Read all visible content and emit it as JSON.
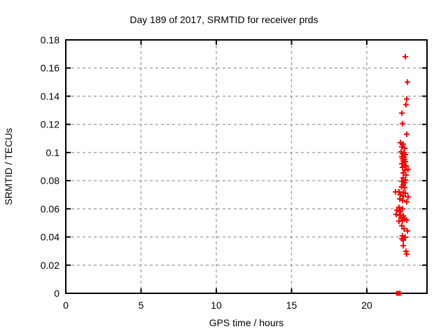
{
  "window": {
    "background": "#ffffff"
  },
  "chart_data": {
    "type": "scatter",
    "title": "Day 189 of 2017, SRMTID for receiver prds",
    "xlabel": "GPS time / hours",
    "ylabel": "SRMTID / TECUs",
    "xlim": [
      0,
      24
    ],
    "ylim": [
      0,
      0.18
    ],
    "xticks": [
      0,
      5,
      10,
      15,
      20
    ],
    "xtick_labels": [
      "0",
      "5",
      "10",
      "15",
      "20"
    ],
    "yticks": [
      0,
      0.02,
      0.04,
      0.06,
      0.08,
      0.1,
      0.12,
      0.14,
      0.16,
      0.18
    ],
    "ytick_labels": [
      "0",
      "0.02",
      "0.04",
      "0.06",
      "0.08",
      "0.1",
      "0.12",
      "0.14",
      "0.16",
      "0.18"
    ],
    "grid": true,
    "grid_style": "dashed",
    "legend_position": "none",
    "colors": {
      "marker": "#ff0000",
      "grid": "#a0a0a0",
      "axis": "#000000",
      "background": "#ffffff"
    },
    "series": [
      {
        "name": "SRMTID plus markers",
        "marker": "plus",
        "color": "#ff0000",
        "points": [
          [
            22.56,
            0.168
          ],
          [
            22.7,
            0.15
          ],
          [
            22.65,
            0.138
          ],
          [
            22.6,
            0.134
          ],
          [
            22.33,
            0.128
          ],
          [
            22.37,
            0.1205
          ],
          [
            22.65,
            0.113
          ],
          [
            22.23,
            0.107
          ],
          [
            22.42,
            0.106
          ],
          [
            22.33,
            0.104
          ],
          [
            22.51,
            0.103
          ],
          [
            22.28,
            0.1005
          ],
          [
            22.47,
            0.1
          ],
          [
            22.37,
            0.099
          ],
          [
            22.56,
            0.0985
          ],
          [
            22.33,
            0.097
          ],
          [
            22.47,
            0.0965
          ],
          [
            22.37,
            0.0955
          ],
          [
            22.51,
            0.095
          ],
          [
            22.42,
            0.094
          ],
          [
            22.56,
            0.0935
          ],
          [
            22.33,
            0.092
          ],
          [
            22.47,
            0.0915
          ],
          [
            22.6,
            0.0905
          ],
          [
            22.37,
            0.0895
          ],
          [
            22.74,
            0.088
          ],
          [
            22.53,
            0.0875
          ],
          [
            22.42,
            0.0855
          ],
          [
            22.6,
            0.084
          ],
          [
            22.42,
            0.082
          ],
          [
            22.56,
            0.0805
          ],
          [
            22.33,
            0.0795
          ],
          [
            22.51,
            0.0785
          ],
          [
            22.42,
            0.077
          ],
          [
            22.3,
            0.0755
          ],
          [
            22.51,
            0.075
          ],
          [
            22.14,
            0.0721
          ],
          [
            22.42,
            0.0716
          ],
          [
            22.56,
            0.0711
          ],
          [
            21.91,
            0.072
          ],
          [
            22.23,
            0.07
          ],
          [
            22.42,
            0.069
          ],
          [
            22.74,
            0.0685
          ],
          [
            22.19,
            0.067
          ],
          [
            22.37,
            0.066
          ],
          [
            22.65,
            0.065
          ],
          [
            22.14,
            0.061
          ],
          [
            22.37,
            0.06
          ],
          [
            22.0,
            0.059
          ],
          [
            22.23,
            0.058
          ],
          [
            21.95,
            0.056
          ],
          [
            22.19,
            0.0555
          ],
          [
            22.42,
            0.055
          ],
          [
            22.28,
            0.0537
          ],
          [
            22.51,
            0.0528
          ],
          [
            22.65,
            0.052
          ],
          [
            22.37,
            0.0517
          ],
          [
            22.14,
            0.0512
          ],
          [
            22.33,
            0.048
          ],
          [
            22.47,
            0.0458
          ],
          [
            22.7,
            0.0443
          ],
          [
            22.37,
            0.0408
          ],
          [
            22.56,
            0.0398
          ],
          [
            22.33,
            0.0388
          ],
          [
            22.42,
            0.0378
          ],
          [
            22.42,
            0.0338
          ],
          [
            22.6,
            0.0298
          ],
          [
            22.65,
            0.0279
          ]
        ]
      },
      {
        "name": "zero value marker",
        "marker": "filled-square",
        "color": "#ff0000",
        "points": [
          [
            22.1,
            0
          ]
        ]
      }
    ]
  }
}
